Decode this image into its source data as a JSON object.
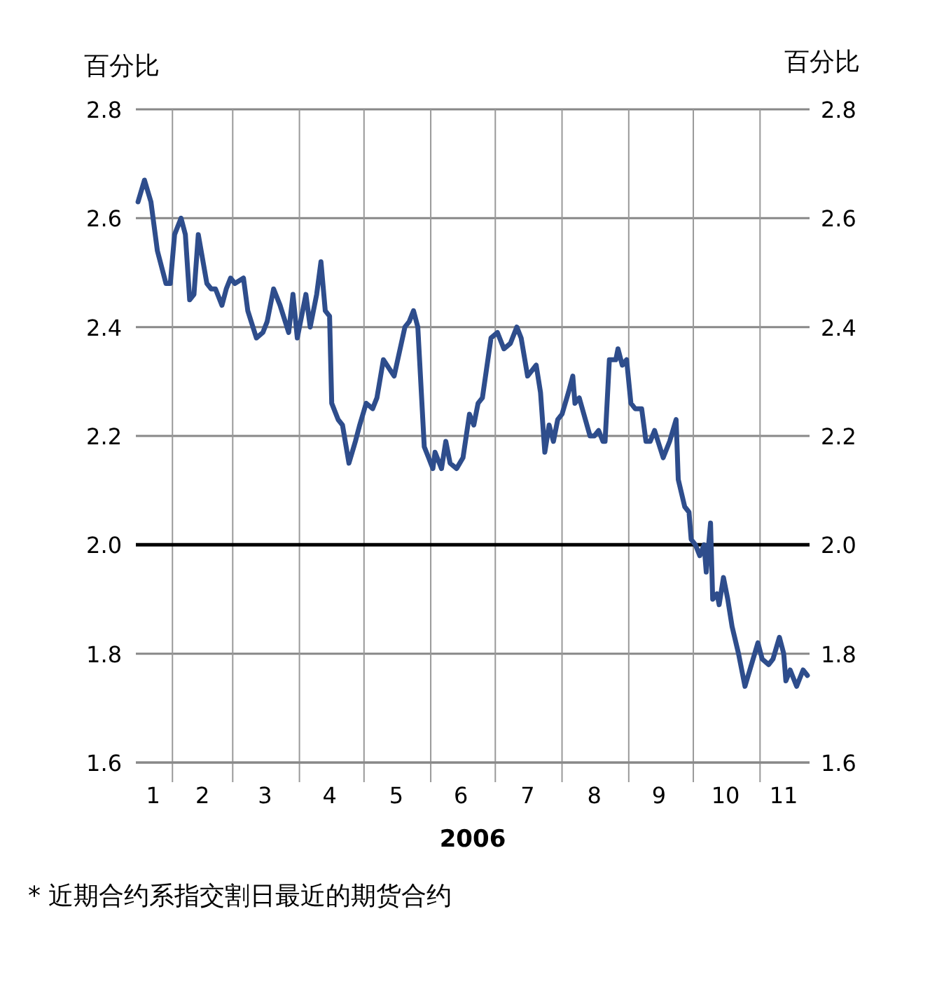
{
  "chart_data": {
    "type": "line",
    "ylabel": "百分比",
    "y2label": "百分比",
    "xlabel": "2006",
    "annotations": [
      "* 近期合约系指交割日最近的期货合约"
    ],
    "x": [
      "2006-01-16",
      "2006-01-19",
      "2006-01-22",
      "2006-01-25",
      "2006-01-29",
      "2006-01-31",
      "2006-02-02",
      "2006-02-05",
      "2006-02-07",
      "2006-02-09",
      "2006-02-11",
      "2006-02-13",
      "2006-02-17",
      "2006-02-19",
      "2006-02-21",
      "2006-02-24",
      "2006-02-26",
      "2006-02-28",
      "2006-03-02",
      "2006-03-06",
      "2006-03-08",
      "2006-03-12",
      "2006-03-15",
      "2006-03-17",
      "2006-03-20",
      "2006-03-23",
      "2006-03-27",
      "2006-03-29",
      "2006-03-31",
      "2006-04-04",
      "2006-04-06",
      "2006-04-09",
      "2006-04-11",
      "2006-04-13",
      "2006-04-15",
      "2006-04-16",
      "2006-04-19",
      "2006-04-21",
      "2006-04-24",
      "2006-04-27",
      "2006-04-29",
      "2006-05-02",
      "2006-05-05",
      "2006-05-07",
      "2006-05-10",
      "2006-05-15",
      "2006-05-20",
      "2006-05-22",
      "2006-05-24",
      "2006-05-26",
      "2006-05-29",
      "2006-05-31",
      "2006-06-02",
      "2006-06-03",
      "2006-06-06",
      "2006-06-08",
      "2006-06-10",
      "2006-06-13",
      "2006-06-16",
      "2006-06-19",
      "2006-06-21",
      "2006-06-23",
      "2006-06-25",
      "2006-06-29",
      "2006-07-02",
      "2006-07-05",
      "2006-07-08",
      "2006-07-11",
      "2006-07-13",
      "2006-07-16",
      "2006-07-20",
      "2006-07-22",
      "2006-07-24",
      "2006-07-26",
      "2006-07-28",
      "2006-07-30",
      "2006-08-01",
      "2006-08-04",
      "2006-08-06",
      "2006-08-07",
      "2006-08-09",
      "2006-08-14",
      "2006-08-16",
      "2006-08-18",
      "2006-08-20",
      "2006-08-21",
      "2006-08-23",
      "2006-08-26",
      "2006-08-27",
      "2006-08-29",
      "2006-08-31",
      "2006-09-02",
      "2006-09-04",
      "2006-09-07",
      "2006-09-09",
      "2006-09-11",
      "2006-09-13",
      "2006-09-17",
      "2006-09-20",
      "2006-09-23",
      "2006-09-24",
      "2006-09-27",
      "2006-09-29",
      "2006-09-30",
      "2006-10-02",
      "2006-10-04",
      "2006-10-06",
      "2006-10-07",
      "2006-10-09",
      "2006-10-10",
      "2006-10-12",
      "2006-10-13",
      "2006-10-15",
      "2006-10-17",
      "2006-10-19",
      "2006-10-22",
      "2006-10-25",
      "2006-10-28",
      "2006-10-31",
      "2006-11-02",
      "2006-11-05",
      "2006-11-07",
      "2006-11-10",
      "2006-11-12",
      "2006-11-13",
      "2006-11-15",
      "2006-11-18",
      "2006-11-21",
      "2006-11-23"
    ],
    "series": [
      {
        "color": "#2e4d8c",
        "values": [
          2.63,
          2.67,
          2.63,
          2.54,
          2.48,
          2.48,
          2.57,
          2.6,
          2.57,
          2.45,
          2.46,
          2.57,
          2.48,
          2.47,
          2.47,
          2.44,
          2.47,
          2.49,
          2.48,
          2.49,
          2.43,
          2.38,
          2.39,
          2.41,
          2.47,
          2.44,
          2.39,
          2.46,
          2.38,
          2.46,
          2.4,
          2.46,
          2.52,
          2.43,
          2.42,
          2.26,
          2.23,
          2.22,
          2.15,
          2.19,
          2.22,
          2.26,
          2.25,
          2.27,
          2.34,
          2.31,
          2.4,
          2.41,
          2.43,
          2.4,
          2.18,
          2.16,
          2.14,
          2.17,
          2.14,
          2.19,
          2.15,
          2.14,
          2.16,
          2.24,
          2.22,
          2.26,
          2.27,
          2.38,
          2.39,
          2.36,
          2.37,
          2.4,
          2.38,
          2.31,
          2.33,
          2.28,
          2.17,
          2.22,
          2.19,
          2.23,
          2.24,
          2.28,
          2.31,
          2.26,
          2.27,
          2.2,
          2.2,
          2.21,
          2.19,
          2.19,
          2.34,
          2.34,
          2.36,
          2.33,
          2.34,
          2.26,
          2.25,
          2.25,
          2.19,
          2.19,
          2.21,
          2.16,
          2.19,
          2.23,
          2.12,
          2.07,
          2.06,
          2.01,
          2.0,
          1.98,
          2.0,
          1.95,
          2.04,
          1.9,
          1.91,
          1.89,
          1.94,
          1.9,
          1.85,
          1.8,
          1.74,
          1.78,
          1.82,
          1.79,
          1.78,
          1.79,
          1.83,
          1.8,
          1.75,
          1.77,
          1.74,
          1.77,
          1.76
        ]
      }
    ],
    "xlim": [
      "2006-01-15",
      "2006-11-24"
    ],
    "xticks": [
      {
        "value": "2006-01-23",
        "label": "1"
      },
      {
        "value": "2006-02-01",
        "label": null
      },
      {
        "value": "2006-02-15",
        "label": "2"
      },
      {
        "value": "2006-03-01",
        "label": null
      },
      {
        "value": "2006-03-16",
        "label": "3"
      },
      {
        "value": "2006-04-01",
        "label": null
      },
      {
        "value": "2006-04-15",
        "label": "4"
      },
      {
        "value": "2006-05-01",
        "label": null
      },
      {
        "value": "2006-05-16",
        "label": "5"
      },
      {
        "value": "2006-06-01",
        "label": null
      },
      {
        "value": "2006-06-15",
        "label": "6"
      },
      {
        "value": "2006-07-01",
        "label": null
      },
      {
        "value": "2006-07-16",
        "label": "7"
      },
      {
        "value": "2006-08-01",
        "label": null
      },
      {
        "value": "2006-08-16",
        "label": "8"
      },
      {
        "value": "2006-09-01",
        "label": null
      },
      {
        "value": "2006-09-15",
        "label": "9"
      },
      {
        "value": "2006-10-01",
        "label": null
      },
      {
        "value": "2006-10-16",
        "label": "10"
      },
      {
        "value": "2006-11-01",
        "label": null
      },
      {
        "value": "2006-11-12",
        "label": "11"
      }
    ],
    "ylim": [
      1.6,
      2.8
    ],
    "yticks": [
      1.6,
      1.8,
      {
        "value": 2.0,
        "label": "2.0"
      },
      2.2,
      2.4,
      2.6,
      2.8
    ],
    "y2lim": [
      1.6,
      2.8
    ],
    "y2ticks": [
      1.6,
      1.8,
      {
        "value": 2.0,
        "label": "2.0"
      },
      2.2,
      2.4,
      2.6,
      2.8
    ],
    "ref_lines": [
      {
        "axis": "y",
        "value": 2.0,
        "label": null,
        "color": "#000000"
      }
    ],
    "grid": true,
    "marker": "none",
    "line_style": "solid"
  }
}
